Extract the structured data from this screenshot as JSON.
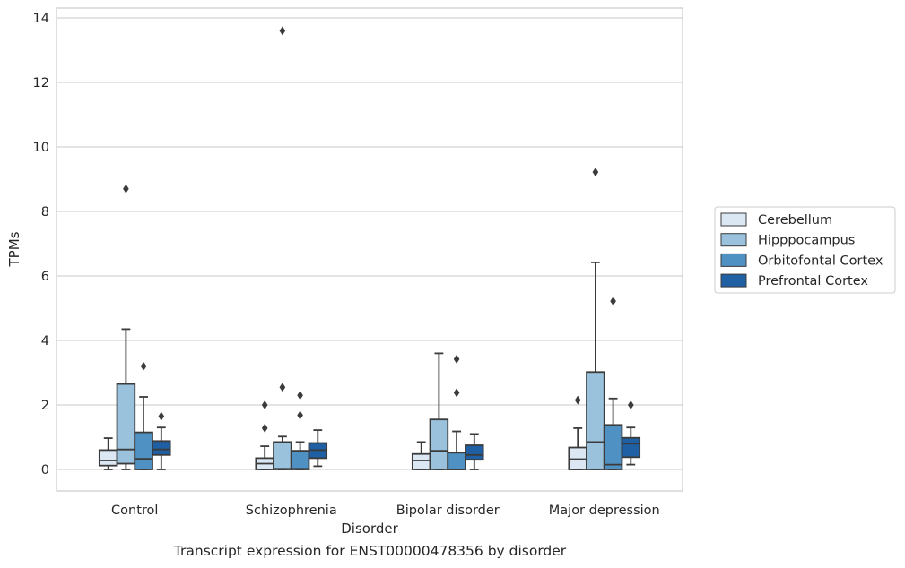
{
  "caption": "Transcript expression for ENST00000478356 by disorder",
  "chart_data": {
    "type": "boxplot",
    "xlabel": "Disorder",
    "ylabel": "TPMs",
    "ylim": [
      -0.65,
      14.3
    ],
    "yticks": [
      0,
      2,
      4,
      6,
      8,
      10,
      12,
      14
    ],
    "grid": "horizontal",
    "legend_position": "right",
    "categories": [
      "Control",
      "Schizophrenia",
      "Bipolar disorder",
      "Major depression"
    ],
    "series": [
      {
        "name": "Cerebellum",
        "color": "#dbe8f4",
        "boxes": [
          {
            "whisker_low": 0.0,
            "q1": 0.12,
            "median": 0.28,
            "q3": 0.6,
            "whisker_high": 0.97,
            "outliers": []
          },
          {
            "whisker_low": 0.0,
            "q1": 0.0,
            "median": 0.18,
            "q3": 0.35,
            "whisker_high": 0.72,
            "outliers": [
              1.28,
              2.0
            ]
          },
          {
            "whisker_low": 0.0,
            "q1": 0.0,
            "median": 0.28,
            "q3": 0.48,
            "whisker_high": 0.85,
            "outliers": []
          },
          {
            "whisker_low": 0.0,
            "q1": 0.0,
            "median": 0.32,
            "q3": 0.68,
            "whisker_high": 1.28,
            "outliers": [
              2.15
            ]
          }
        ]
      },
      {
        "name": "Hipppocampus",
        "color": "#9ac2dd",
        "boxes": [
          {
            "whisker_low": 0.0,
            "q1": 0.18,
            "median": 0.62,
            "q3": 2.65,
            "whisker_high": 4.35,
            "outliers": [
              8.7
            ]
          },
          {
            "whisker_low": 0.0,
            "q1": 0.0,
            "median": 0.02,
            "q3": 0.85,
            "whisker_high": 1.02,
            "outliers": [
              2.55,
              13.6
            ]
          },
          {
            "whisker_low": 0.0,
            "q1": 0.0,
            "median": 0.58,
            "q3": 1.55,
            "whisker_high": 3.6,
            "outliers": []
          },
          {
            "whisker_low": 0.0,
            "q1": 0.0,
            "median": 0.85,
            "q3": 3.02,
            "whisker_high": 6.42,
            "outliers": [
              9.22
            ]
          }
        ]
      },
      {
        "name": "Orbitofontal Cortex",
        "color": "#4f91c2",
        "boxes": [
          {
            "whisker_low": 0.0,
            "q1": 0.0,
            "median": 0.33,
            "q3": 1.15,
            "whisker_high": 2.25,
            "outliers": [
              3.2
            ]
          },
          {
            "whisker_low": 0.0,
            "q1": 0.0,
            "median": 0.02,
            "q3": 0.58,
            "whisker_high": 0.85,
            "outliers": [
              1.68,
              2.3
            ]
          },
          {
            "whisker_low": 0.0,
            "q1": 0.0,
            "median": 0.0,
            "q3": 0.52,
            "whisker_high": 1.18,
            "outliers": [
              2.38,
              3.42
            ]
          },
          {
            "whisker_low": 0.0,
            "q1": 0.0,
            "median": 0.15,
            "q3": 1.38,
            "whisker_high": 2.2,
            "outliers": [
              5.22
            ]
          }
        ]
      },
      {
        "name": "Prefrontal Cortex",
        "color": "#1f5fa3",
        "boxes": [
          {
            "whisker_low": 0.0,
            "q1": 0.45,
            "median": 0.62,
            "q3": 0.88,
            "whisker_high": 1.3,
            "outliers": [
              1.65
            ]
          },
          {
            "whisker_low": 0.1,
            "q1": 0.35,
            "median": 0.6,
            "q3": 0.82,
            "whisker_high": 1.22,
            "outliers": []
          },
          {
            "whisker_low": 0.0,
            "q1": 0.3,
            "median": 0.45,
            "q3": 0.75,
            "whisker_high": 1.1,
            "outliers": []
          },
          {
            "whisker_low": 0.15,
            "q1": 0.38,
            "median": 0.8,
            "q3": 0.98,
            "whisker_high": 1.3,
            "outliers": [
              2.0
            ]
          }
        ]
      }
    ]
  }
}
